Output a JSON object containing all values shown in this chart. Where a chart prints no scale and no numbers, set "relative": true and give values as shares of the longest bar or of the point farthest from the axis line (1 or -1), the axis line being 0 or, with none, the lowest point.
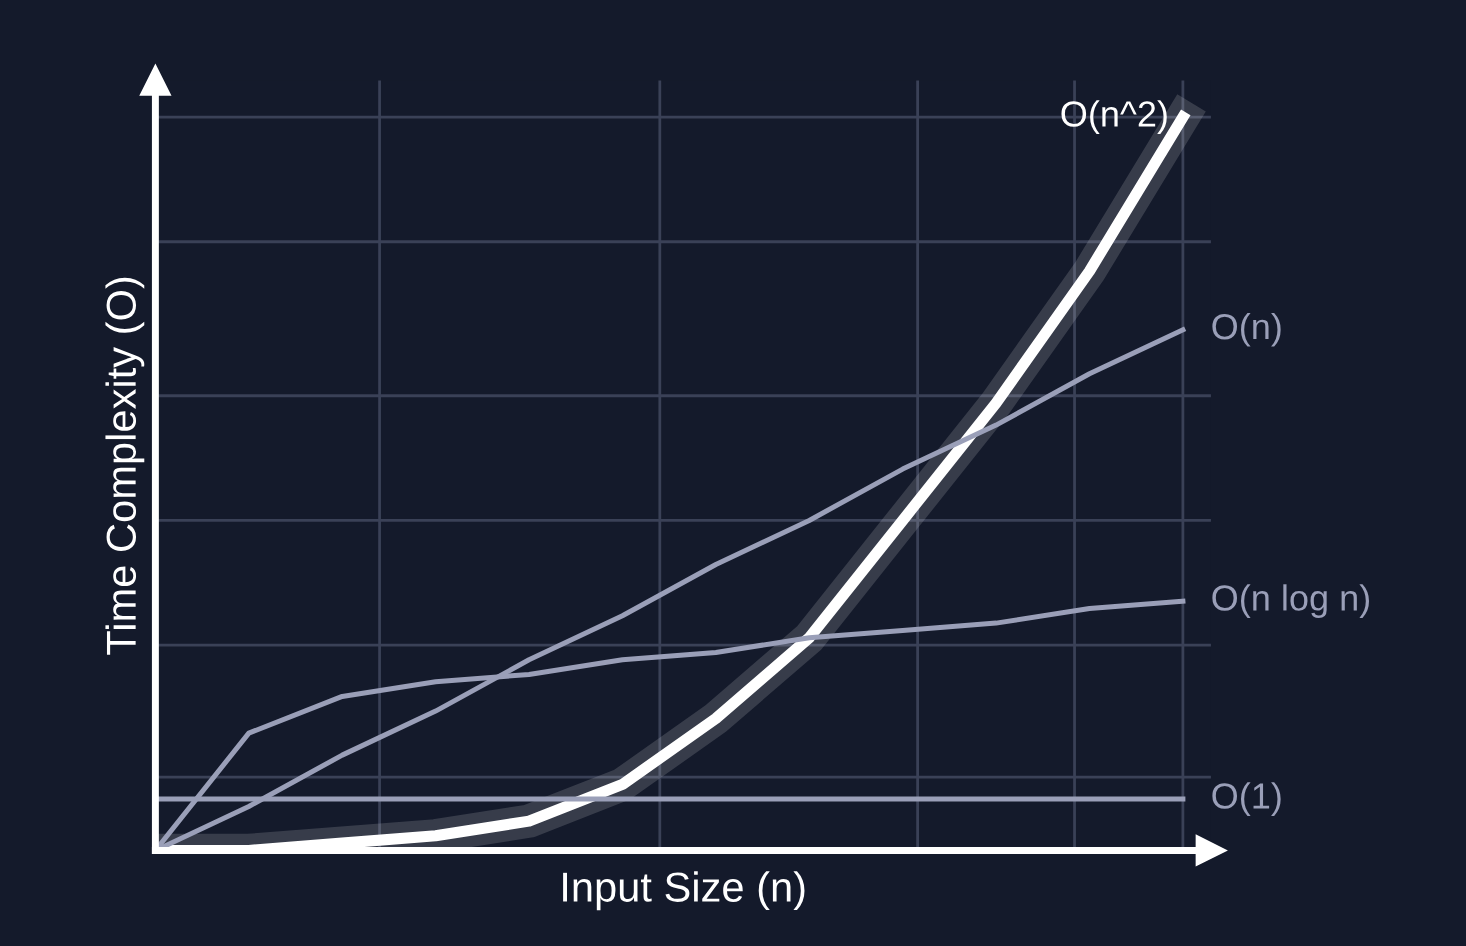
{
  "chart_data": {
    "type": "line",
    "relative": true,
    "xlabel": "Input Size (n)",
    "ylabel": "Time Complexity (O)",
    "categories": [
      null,
      null,
      null,
      null,
      null,
      null,
      null,
      null,
      null,
      null,
      null,
      null
    ],
    "grid": true,
    "marker": "none",
    "line_style": "solid",
    "series": [
      {
        "name": "O(n^2)",
        "color": "#ffffff",
        "values": [
          0,
          0,
          0.01,
          0.02,
          0.04,
          0.09,
          0.18,
          0.29,
          0.45,
          0.61,
          0.79,
          1.0
        ]
      },
      {
        "name": "O(n)",
        "color": "#9a9fb8",
        "values": [
          0,
          0.06,
          0.13,
          0.19,
          0.26,
          0.32,
          0.39,
          0.45,
          0.52,
          0.58,
          0.65,
          0.71
        ]
      },
      {
        "name": "O(n log n)",
        "color": "#9a9fb8",
        "values": [
          0,
          0.16,
          0.21,
          0.23,
          0.24,
          0.26,
          0.27,
          0.29,
          0.3,
          0.31,
          0.33,
          0.34
        ]
      },
      {
        "name": "O(1)",
        "color": "#9a9fb8",
        "values": [
          0.07,
          0.07,
          0.07,
          0.07,
          0.07,
          0.07,
          0.07,
          0.07,
          0.07,
          0.07,
          0.07,
          0.07
        ]
      }
    ]
  }
}
